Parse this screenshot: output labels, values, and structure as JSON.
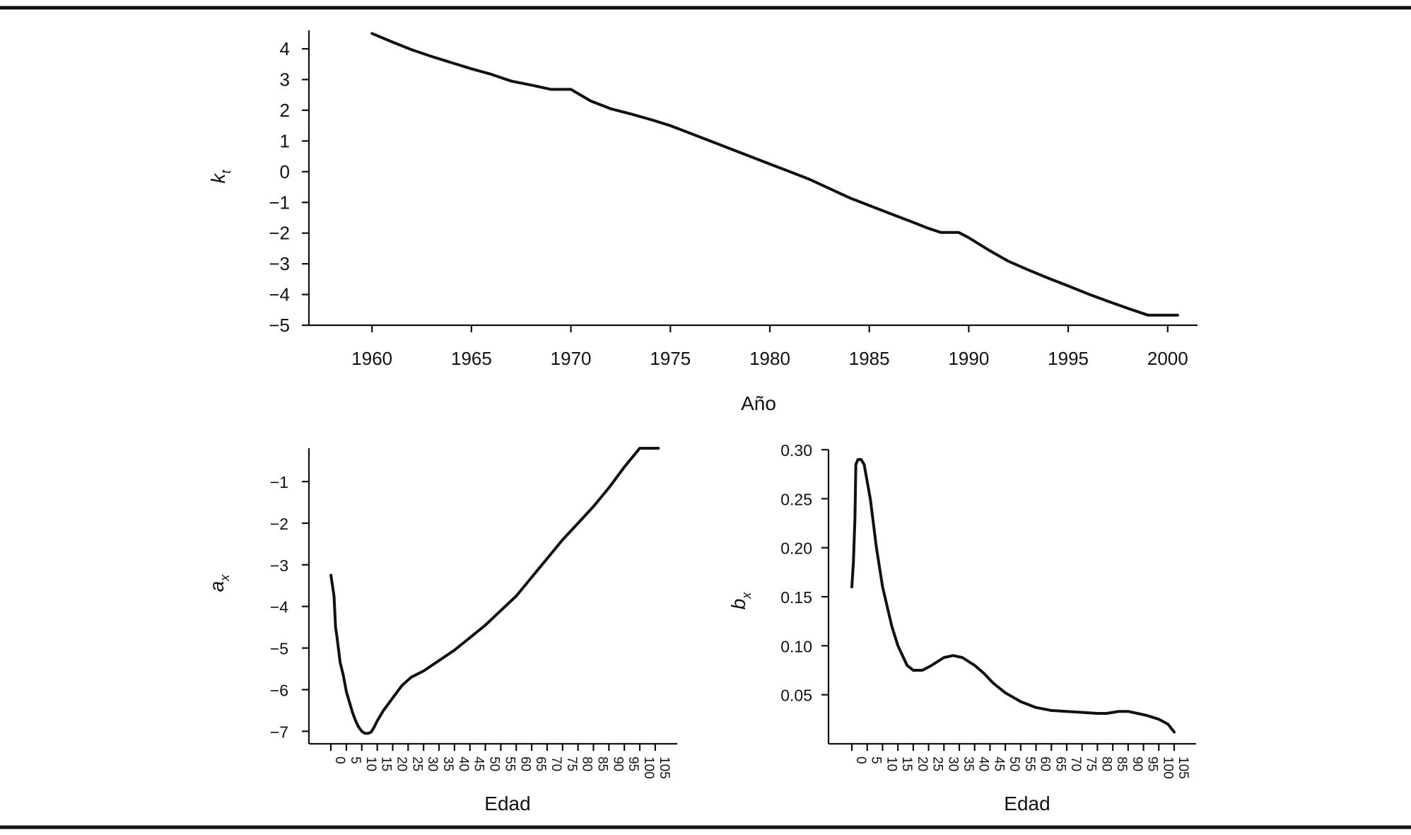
{
  "chart_data": [
    {
      "type": "line",
      "title": "",
      "xlabel": "Año",
      "ylabel": "k",
      "ylabel_sub": "t",
      "xlim": [
        1958.5,
        2001.5
      ],
      "ylim": [
        -5,
        4.6
      ],
      "xticks": [
        1960,
        1965,
        1970,
        1975,
        1980,
        1985,
        1990,
        1995,
        2000
      ],
      "yticks": [
        4,
        3,
        2,
        1,
        0,
        -1,
        -2,
        -3,
        -4,
        -5
      ],
      "ytick_labels": [
        "4",
        "3",
        "2",
        "1",
        "0",
        "−1",
        "−2",
        "−3",
        "−4",
        "−5"
      ],
      "series": [
        {
          "x": [
            1960,
            1961,
            1962,
            1963,
            1964,
            1965,
            1966,
            1967,
            1968,
            1969,
            1970,
            1971,
            1972,
            1973,
            1974,
            1975,
            1976,
            1977,
            1978,
            1979,
            1980,
            1981,
            1982,
            1983,
            1984,
            1985,
            1986,
            1987,
            1988,
            1988.6,
            1989.5,
            1990,
            1991,
            1992,
            1993,
            1994,
            1995,
            1996,
            1997,
            1998,
            1999,
            2000,
            2000.5
          ],
          "y": [
            4.5,
            4.23,
            3.97,
            3.75,
            3.55,
            3.35,
            3.17,
            2.95,
            2.82,
            2.68,
            2.68,
            2.3,
            2.05,
            1.88,
            1.7,
            1.5,
            1.25,
            1.0,
            0.75,
            0.5,
            0.25,
            0.0,
            -0.25,
            -0.55,
            -0.85,
            -1.1,
            -1.35,
            -1.6,
            -1.85,
            -1.98,
            -1.98,
            -2.15,
            -2.55,
            -2.92,
            -3.2,
            -3.47,
            -3.72,
            -3.98,
            -4.22,
            -4.45,
            -4.67,
            -4.67,
            -4.67
          ]
        }
      ]
    },
    {
      "type": "line",
      "title": "",
      "xlabel": "Edad",
      "ylabel": "a",
      "ylabel_sub": "x",
      "xlim": [
        -3,
        108
      ],
      "ylim": [
        -7.3,
        -0.2
      ],
      "xticks": [
        0,
        5,
        10,
        15,
        20,
        25,
        30,
        35,
        40,
        45,
        50,
        55,
        60,
        65,
        70,
        75,
        80,
        85,
        90,
        95,
        100,
        105
      ],
      "yticks": [
        -1,
        -2,
        -3,
        -4,
        -5,
        -6,
        -7
      ],
      "ytick_labels": [
        "−1",
        "−2",
        "−3",
        "−4",
        "−5",
        "−6",
        "−7"
      ],
      "series": [
        {
          "x": [
            0,
            1,
            1.5,
            2,
            3,
            4,
            5,
            6,
            7,
            8,
            9,
            10,
            11,
            12,
            13,
            14,
            15,
            17,
            20,
            23,
            26,
            30,
            35,
            40,
            45,
            50,
            55,
            60,
            65,
            70,
            75,
            80,
            85,
            90,
            95,
            100,
            104,
            106
          ],
          "y": [
            -3.25,
            -3.75,
            -4.5,
            -4.75,
            -5.35,
            -5.65,
            -6.05,
            -6.3,
            -6.55,
            -6.75,
            -6.9,
            -7.0,
            -7.05,
            -7.05,
            -7.02,
            -6.9,
            -6.75,
            -6.5,
            -6.2,
            -5.9,
            -5.7,
            -5.55,
            -5.3,
            -5.05,
            -4.75,
            -4.45,
            -4.1,
            -3.75,
            -3.3,
            -2.85,
            -2.4,
            -2.0,
            -1.6,
            -1.15,
            -0.65,
            -0.2,
            0.2,
            0.45
          ]
        }
      ]
    },
    {
      "type": "line",
      "title": "",
      "xlabel": "Edad",
      "ylabel": "b",
      "ylabel_sub": "x",
      "xlim": [
        -3,
        108
      ],
      "ylim": [
        0,
        0.3
      ],
      "xticks": [
        0,
        5,
        10,
        15,
        20,
        25,
        30,
        35,
        40,
        45,
        50,
        55,
        60,
        65,
        70,
        75,
        80,
        85,
        90,
        95,
        100,
        105
      ],
      "yticks": [
        0.3,
        0.25,
        0.2,
        0.15,
        0.1,
        0.05
      ],
      "ytick_labels": [
        "0.30",
        "0.25",
        "0.20",
        "0.15",
        "0.10",
        "0.05"
      ],
      "series": [
        {
          "x": [
            0,
            0.5,
            1,
            1.3,
            2,
            3,
            4,
            6,
            8,
            10,
            13,
            15,
            18,
            20,
            23,
            26,
            30,
            33,
            36,
            40,
            43,
            46,
            50,
            55,
            60,
            65,
            70,
            75,
            80,
            83,
            85,
            87,
            90,
            93,
            96,
            100,
            103,
            105
          ],
          "y": [
            0.16,
            0.185,
            0.23,
            0.285,
            0.29,
            0.29,
            0.285,
            0.25,
            0.2,
            0.16,
            0.12,
            0.1,
            0.08,
            0.075,
            0.075,
            0.08,
            0.088,
            0.09,
            0.088,
            0.08,
            0.072,
            0.062,
            0.052,
            0.043,
            0.037,
            0.034,
            0.033,
            0.032,
            0.031,
            0.031,
            0.032,
            0.033,
            0.033,
            0.031,
            0.029,
            0.025,
            0.02,
            0.012
          ]
        }
      ]
    }
  ]
}
